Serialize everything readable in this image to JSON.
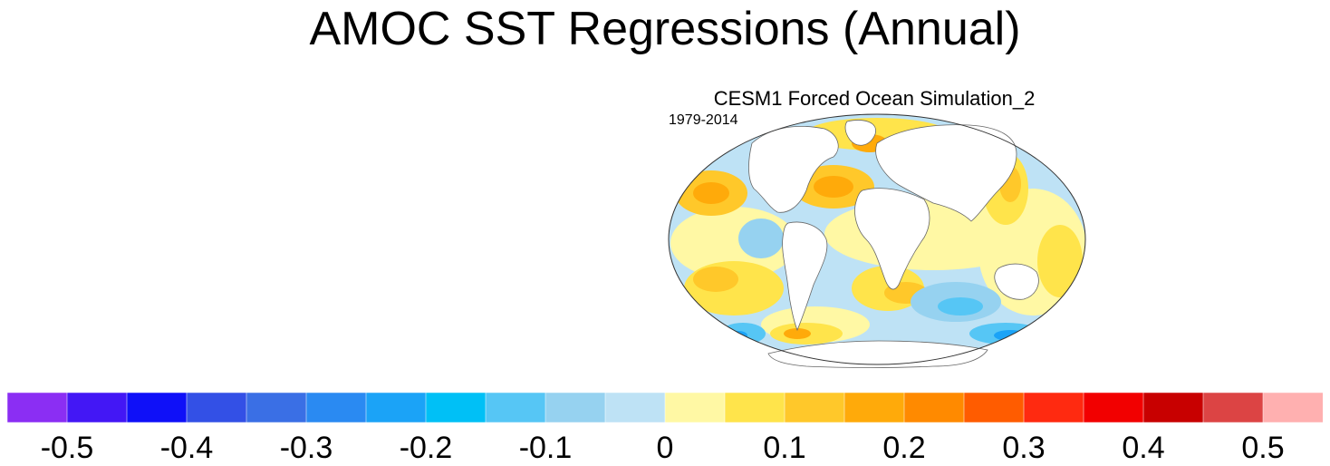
{
  "title": "AMOC SST Regressions (Annual)",
  "chart_data": {
    "type": "heatmap",
    "title": "AMOC SST Regressions (Annual)",
    "panel": {
      "title": "CESM1 Forced Ocean Simulation_2",
      "period": "1979-2014",
      "projection": "Robinson",
      "variable": "SST regression on AMOC"
    },
    "colorbar": {
      "levels": [
        -0.55,
        -0.5,
        -0.45,
        -0.4,
        -0.35,
        -0.3,
        -0.25,
        -0.2,
        -0.15,
        -0.1,
        -0.05,
        0.0,
        0.05,
        0.1,
        0.15,
        0.2,
        0.25,
        0.3,
        0.35,
        0.4,
        0.45,
        0.5,
        0.55
      ],
      "colors": [
        "#8b2ef3",
        "#4317f5",
        "#0f10f8",
        "#3350e6",
        "#3a6fe5",
        "#2a8af2",
        "#1ba3f7",
        "#00c0f6",
        "#56c6f5",
        "#96d2f0",
        "#bee2f5",
        "#fff8a4",
        "#ffe44b",
        "#ffc82a",
        "#ffaa0a",
        "#ff8a00",
        "#ff5c00",
        "#ff2a10",
        "#f20000",
        "#c80000",
        "#dc4444",
        "#ffb0b0"
      ],
      "tick_values": [
        -0.5,
        -0.4,
        -0.3,
        -0.2,
        -0.1,
        0,
        0.1,
        0.2,
        0.3,
        0.4,
        0.5
      ],
      "tick_labels": [
        "-0.5",
        "-0.4",
        "-0.3",
        "-0.2",
        "-0.1",
        "0",
        "0.1",
        "0.2",
        "0.3",
        "0.4",
        "0.5"
      ]
    }
  }
}
